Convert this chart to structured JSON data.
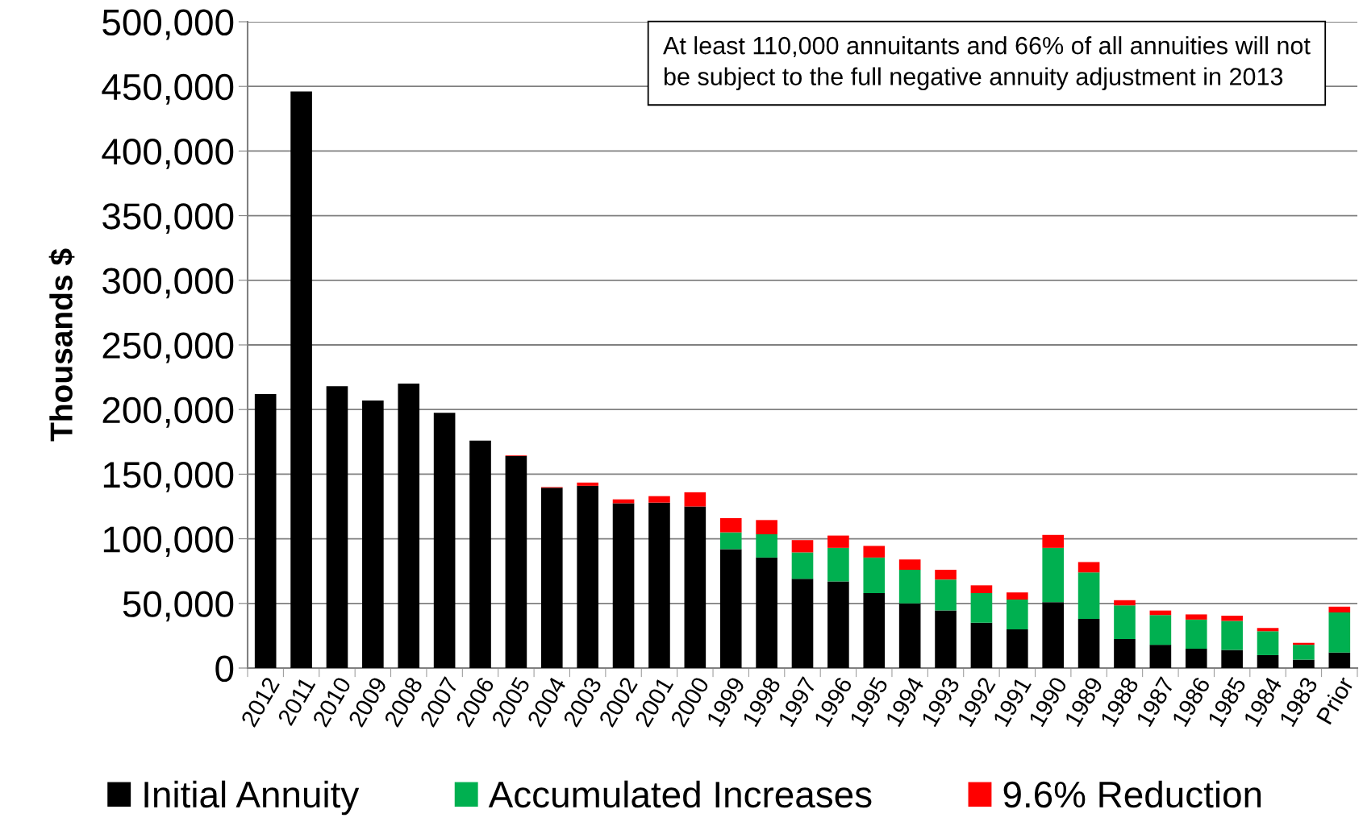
{
  "chart_data": {
    "type": "bar",
    "stacked": true,
    "ylabel": "Thousands $",
    "categories": [
      "2012",
      "2011",
      "2010",
      "2009",
      "2008",
      "2007",
      "2006",
      "2005",
      "2004",
      "2003",
      "2002",
      "2001",
      "2000",
      "1999",
      "1998",
      "1997",
      "1996",
      "1995",
      "1994",
      "1993",
      "1992",
      "1991",
      "1990",
      "1989",
      "1988",
      "1987",
      "1986",
      "1985",
      "1984",
      "1983",
      "Prior"
    ],
    "series": [
      {
        "name": "Initial Annuity",
        "color": "#000000",
        "values": [
          212000,
          446000,
          218000,
          207000,
          220000,
          197500,
          176000,
          164000,
          139500,
          141000,
          127500,
          128000,
          125000,
          92000,
          85500,
          69000,
          67000,
          58000,
          50000,
          44500,
          35000,
          30000,
          51000,
          38000,
          22500,
          18000,
          15000,
          14000,
          10000,
          6500,
          12000
        ]
      },
      {
        "name": "Accumulated Increases",
        "color": "#00b050",
        "values": [
          0,
          0,
          0,
          0,
          0,
          0,
          0,
          0,
          0,
          0,
          0,
          0,
          0,
          13000,
          18000,
          20500,
          26000,
          27500,
          26000,
          24000,
          23000,
          23000,
          42000,
          36000,
          26000,
          23000,
          22500,
          22500,
          18500,
          11500,
          31000
        ]
      },
      {
        "name": "9.6% Reduction",
        "color": "#ff0000",
        "values": [
          0,
          0,
          0,
          0,
          0,
          0,
          0,
          500,
          500,
          2500,
          3000,
          5000,
          11000,
          11000,
          11000,
          9500,
          9500,
          9000,
          8000,
          7500,
          6000,
          5500,
          10000,
          8000,
          4000,
          3500,
          4000,
          4000,
          2500,
          1500,
          4500
        ]
      }
    ],
    "ylim": [
      0,
      500000
    ],
    "yticks": [
      {
        "value": 0,
        "label": "0"
      },
      {
        "value": 50000,
        "label": "50,000"
      },
      {
        "value": 100000,
        "label": "100,000"
      },
      {
        "value": 150000,
        "label": "150,000"
      },
      {
        "value": 200000,
        "label": "200,000"
      },
      {
        "value": 250000,
        "label": "250,000"
      },
      {
        "value": 300000,
        "label": "300,000"
      },
      {
        "value": 350000,
        "label": "350,000"
      },
      {
        "value": 400000,
        "label": "400,000"
      },
      {
        "value": 450000,
        "label": "450,000"
      },
      {
        "value": 500000,
        "label": "500,000"
      }
    ],
    "grid": "y",
    "legend": "bottom",
    "annotations": [
      "At least 110,000 annuitants and 66% of all annuities will not be subject to the full negative annuity adjustment in 2013"
    ]
  }
}
